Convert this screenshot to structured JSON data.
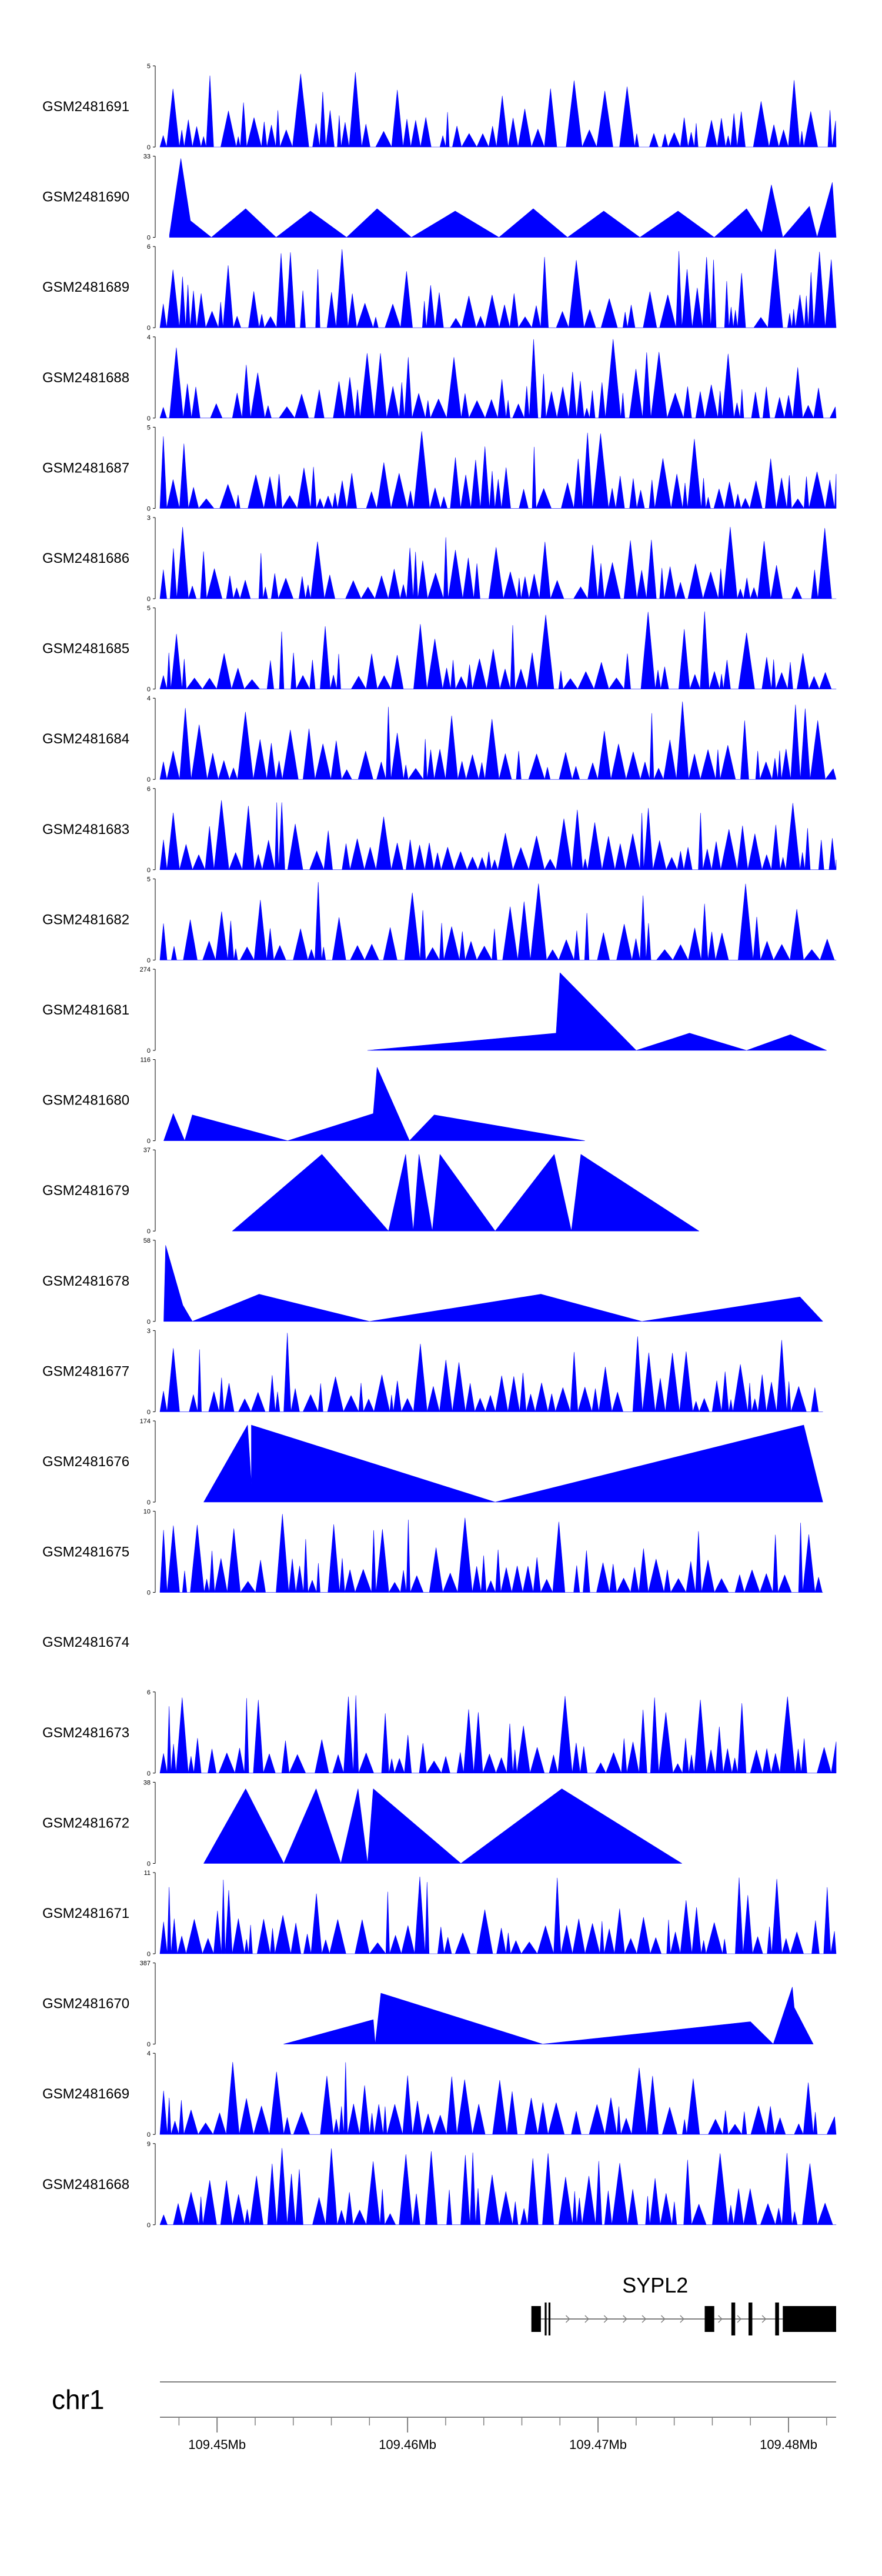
{
  "chart_data": {
    "type": "area",
    "title": "",
    "chromosome": "chr1",
    "color": "#0000ff",
    "x_range": [
      109.447,
      109.4825
    ],
    "x_ticks": [
      {
        "value": 109.45,
        "label": "109.45Mb"
      },
      {
        "value": 109.46,
        "label": "109.46Mb"
      },
      {
        "value": 109.47,
        "label": "109.47Mb"
      },
      {
        "value": 109.48,
        "label": "109.48Mb"
      }
    ],
    "minor_tick_step": 0.002,
    "tracks": [
      {
        "name": "GSM2481691",
        "ymax": 5,
        "ymin_label": "0",
        "ymax_label": "5",
        "style": "dense",
        "seed": 11
      },
      {
        "name": "GSM2481690",
        "ymax": 33,
        "ymin_label": "0",
        "ymax_label": "33",
        "style": "sparse",
        "peaks": [
          [
            109.4475,
            1
          ],
          [
            109.4481,
            33
          ],
          [
            109.4486,
            7
          ],
          [
            109.4497,
            0
          ],
          [
            109.4515,
            12
          ],
          [
            109.4531,
            0
          ],
          [
            109.4549,
            11
          ],
          [
            109.4568,
            0
          ],
          [
            109.4584,
            12
          ],
          [
            109.4602,
            0
          ],
          [
            109.4625,
            11
          ],
          [
            109.4648,
            0
          ],
          [
            109.4666,
            12
          ],
          [
            109.4684,
            0
          ],
          [
            109.4703,
            11
          ],
          [
            109.4722,
            0
          ],
          [
            109.4742,
            11
          ],
          [
            109.4761,
            0
          ],
          [
            109.4778,
            12
          ],
          [
            109.4786,
            2
          ],
          [
            109.4791,
            22
          ],
          [
            109.4797,
            0
          ],
          [
            109.4811,
            13
          ],
          [
            109.4815,
            0
          ],
          [
            109.4823,
            23
          ],
          [
            109.4825,
            0
          ]
        ]
      },
      {
        "name": "GSM2481689",
        "ymax": 6,
        "ymin_label": "0",
        "ymax_label": "6",
        "style": "dense",
        "seed": 23
      },
      {
        "name": "GSM2481688",
        "ymax": 4,
        "ymin_label": "0",
        "ymax_label": "4",
        "style": "dense",
        "seed": 31
      },
      {
        "name": "GSM2481687",
        "ymax": 5,
        "ymin_label": "0",
        "ymax_label": "5",
        "style": "dense",
        "seed": 47
      },
      {
        "name": "GSM2481686",
        "ymax": 3,
        "ymin_label": "0",
        "ymax_label": "3",
        "style": "dense",
        "seed": 53
      },
      {
        "name": "GSM2481685",
        "ymax": 5,
        "ymin_label": "0",
        "ymax_label": "5",
        "style": "dense",
        "seed": 67
      },
      {
        "name": "GSM2481684",
        "ymax": 4,
        "ymin_label": "0",
        "ymax_label": "4",
        "style": "dense",
        "seed": 71
      },
      {
        "name": "GSM2481683",
        "ymax": 6,
        "ymin_label": "0",
        "ymax_label": "6",
        "style": "dense",
        "seed": 83
      },
      {
        "name": "GSM2481682",
        "ymax": 5,
        "ymin_label": "0",
        "ymax_label": "5",
        "style": "dense",
        "seed": 97
      },
      {
        "name": "GSM2481681",
        "ymax": 274,
        "ymin_label": "0",
        "ymax_label": "274",
        "style": "sparse",
        "peaks": [
          [
            109.4579,
            0
          ],
          [
            109.4678,
            60
          ],
          [
            109.468,
            270
          ],
          [
            109.472,
            0
          ],
          [
            109.4748,
            60
          ],
          [
            109.4778,
            0
          ],
          [
            109.4801,
            55
          ],
          [
            109.482,
            0
          ]
        ]
      },
      {
        "name": "GSM2481680",
        "ymax": 116,
        "ymin_label": "0",
        "ymax_label": "116",
        "style": "sparse",
        "peaks": [
          [
            109.4472,
            0
          ],
          [
            109.4477,
            40
          ],
          [
            109.4483,
            0
          ],
          [
            109.4487,
            38
          ],
          [
            109.4537,
            0
          ],
          [
            109.4582,
            40
          ],
          [
            109.4584,
            108
          ],
          [
            109.4601,
            0
          ],
          [
            109.4614,
            38
          ],
          [
            109.4693,
            0
          ]
        ]
      },
      {
        "name": "GSM2481679",
        "ymax": 37,
        "ymin_label": "0",
        "ymax_label": "37",
        "style": "sparse",
        "peaks": [
          [
            109.4508,
            0
          ],
          [
            109.4555,
            36
          ],
          [
            109.459,
            0
          ],
          [
            109.4599,
            36
          ],
          [
            109.4603,
            0
          ],
          [
            109.4606,
            36
          ],
          [
            109.4613,
            0
          ],
          [
            109.4617,
            36
          ],
          [
            109.4646,
            0
          ],
          [
            109.4677,
            36
          ],
          [
            109.4686,
            0
          ],
          [
            109.4691,
            36
          ],
          [
            109.4753,
            0
          ]
        ]
      },
      {
        "name": "GSM2481678",
        "ymax": 58,
        "ymin_label": "0",
        "ymax_label": "58",
        "style": "sparse",
        "peaks": [
          [
            109.4472,
            0
          ],
          [
            109.4473,
            56
          ],
          [
            109.4482,
            12
          ],
          [
            109.4487,
            0
          ],
          [
            109.4522,
            20
          ],
          [
            109.458,
            0
          ],
          [
            109.467,
            20
          ],
          [
            109.4723,
            0
          ],
          [
            109.4806,
            18
          ],
          [
            109.4818,
            0
          ]
        ]
      },
      {
        "name": "GSM2481677",
        "ymax": 3,
        "ymin_label": "0",
        "ymax_label": "3",
        "style": "dense",
        "seed": 101,
        "x_end": 109.4818
      },
      {
        "name": "GSM2481676",
        "ymax": 174,
        "ymin_label": "0",
        "ymax_label": "174",
        "style": "sparse",
        "peaks": [
          [
            109.4493,
            0
          ],
          [
            109.4516,
            170
          ],
          [
            109.4518,
            40
          ],
          [
            109.4518,
            170
          ],
          [
            109.4646,
            0
          ],
          [
            109.4808,
            170
          ],
          [
            109.4818,
            0
          ]
        ]
      },
      {
        "name": "GSM2481675",
        "ymax": 10,
        "ymin_label": "0",
        "ymax_label": "10",
        "style": "dense",
        "seed": 113,
        "x_end": 109.4818
      },
      {
        "name": "GSM2481674",
        "ymax": null,
        "style": "empty"
      },
      {
        "name": "GSM2481673",
        "ymax": 6,
        "ymin_label": "0",
        "ymax_label": "6",
        "style": "dense",
        "seed": 127
      },
      {
        "name": "GSM2481672",
        "ymax": 38,
        "ymin_label": "0",
        "ymax_label": "38",
        "style": "sparse",
        "peaks": [
          [
            109.4493,
            0
          ],
          [
            109.4515,
            36
          ],
          [
            109.4535,
            0
          ],
          [
            109.4552,
            36
          ],
          [
            109.4565,
            0
          ],
          [
            109.4574,
            36
          ],
          [
            109.4579,
            0
          ],
          [
            109.4582,
            36
          ],
          [
            109.4628,
            0
          ],
          [
            109.4681,
            36
          ],
          [
            109.4744,
            0
          ]
        ]
      },
      {
        "name": "GSM2481671",
        "ymax": 11,
        "ymin_label": "0",
        "ymax_label": "11",
        "style": "dense",
        "seed": 139
      },
      {
        "name": "GSM2481670",
        "ymax": 387,
        "ymin_label": "0",
        "ymax_label": "387",
        "style": "sparse",
        "peaks": [
          [
            109.4535,
            0
          ],
          [
            109.4582,
            120
          ],
          [
            109.4583,
            0
          ],
          [
            109.4586,
            250
          ],
          [
            109.4671,
            0
          ],
          [
            109.478,
            110
          ],
          [
            109.4792,
            0
          ],
          [
            109.4802,
            280
          ],
          [
            109.4803,
            180
          ],
          [
            109.4813,
            0
          ]
        ]
      },
      {
        "name": "GSM2481669",
        "ymax": 4,
        "ymin_label": "0",
        "ymax_label": "4",
        "style": "dense",
        "seed": 151
      },
      {
        "name": "GSM2481668",
        "ymax": 9,
        "ymin_label": "0",
        "ymax_label": "9",
        "style": "dense",
        "seed": 163
      }
    ],
    "gene": {
      "name": "SYPL2",
      "strand": "+",
      "start": 109.4665,
      "end": 109.4825,
      "exons": [
        [
          109.4665,
          109.467
        ],
        [
          109.4672,
          109.4673
        ],
        [
          109.4674,
          109.4675
        ],
        [
          109.4756,
          109.4761
        ],
        [
          109.477,
          109.4772
        ],
        [
          109.4779,
          109.4781
        ],
        [
          109.4793,
          109.4795
        ],
        [
          109.4797,
          109.4825
        ]
      ],
      "arrows": [
        109.4685,
        109.4695,
        109.4705,
        109.4715,
        109.4725,
        109.4735,
        109.4745,
        109.4765,
        109.4775,
        109.4788
      ]
    }
  }
}
